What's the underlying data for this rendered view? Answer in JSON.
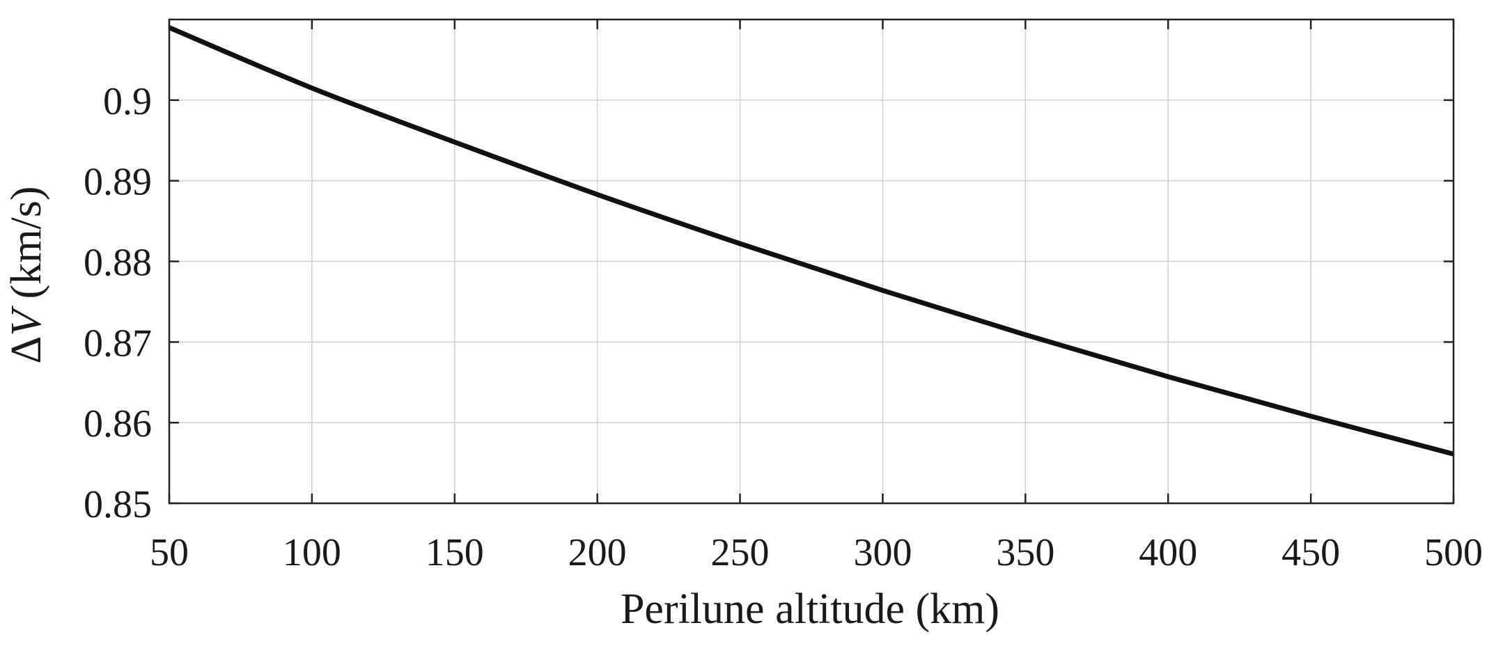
{
  "chart_data": {
    "type": "line",
    "title": "",
    "xlabel": "Perilune altitude (km)",
    "ylabel": {
      "symbol_delta": "Δ",
      "symbol_v": "V",
      "unit": " (km/s)"
    },
    "xlim": [
      50,
      500
    ],
    "ylim": [
      0.85,
      0.91
    ],
    "x_ticks": [
      50,
      100,
      150,
      200,
      250,
      300,
      350,
      400,
      450,
      500
    ],
    "x_tick_labels": [
      "50",
      "100",
      "150",
      "200",
      "250",
      "300",
      "350",
      "400",
      "450",
      "500"
    ],
    "y_ticks": [
      0.85,
      0.86,
      0.87,
      0.88,
      0.89,
      0.9
    ],
    "y_tick_labels": [
      "0.85",
      "0.86",
      "0.87",
      "0.88",
      "0.89",
      "0.9"
    ],
    "grid": true,
    "series": [
      {
        "color": "#111111",
        "x": [
          50,
          100,
          150,
          200,
          250,
          300,
          350,
          400,
          450,
          500
        ],
        "y": [
          0.909,
          0.9015,
          0.8948,
          0.8883,
          0.8822,
          0.8764,
          0.8709,
          0.8657,
          0.8608,
          0.8561
        ]
      }
    ]
  }
}
